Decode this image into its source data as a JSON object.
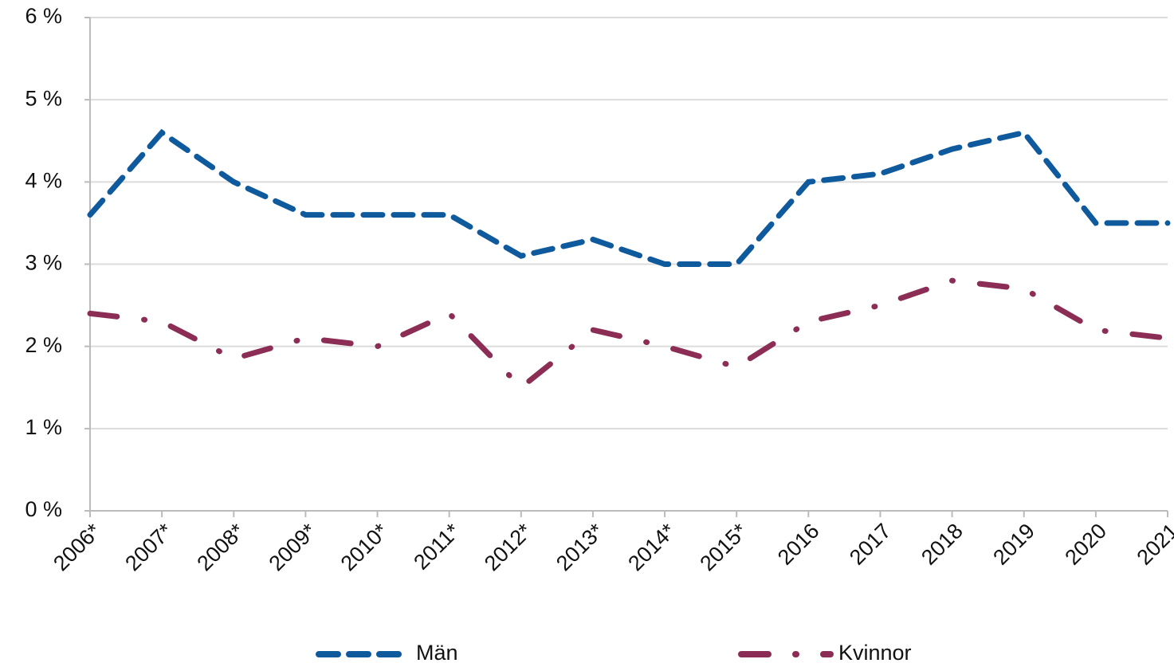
{
  "chart_data": {
    "type": "line",
    "categories": [
      "2006*",
      "2007*",
      "2008*",
      "2009*",
      "2010*",
      "2011*",
      "2012*",
      "2013*",
      "2014*",
      "2015*",
      "2016",
      "2017",
      "2018",
      "2019",
      "2020",
      "2021"
    ],
    "series": [
      {
        "name": "Män",
        "color": "#0f5a9c",
        "dash": "24 14",
        "values": [
          3.6,
          4.6,
          4.0,
          3.6,
          3.6,
          3.6,
          3.1,
          3.3,
          3.0,
          3.0,
          4.0,
          4.1,
          4.4,
          4.6,
          3.5,
          3.5
        ]
      },
      {
        "name": "Kvinnor",
        "color": "#8b2d55",
        "dash": "34 34 1 34",
        "values": [
          2.4,
          2.3,
          1.85,
          2.1,
          2.0,
          2.4,
          1.5,
          2.2,
          2.0,
          1.75,
          2.3,
          2.5,
          2.8,
          2.7,
          2.2,
          2.1
        ]
      }
    ],
    "ylim": [
      0,
      6
    ],
    "yticks": [
      {
        "value": 0,
        "label": "0 %"
      },
      {
        "value": 1,
        "label": "1 %"
      },
      {
        "value": 2,
        "label": "2 %"
      },
      {
        "value": 3,
        "label": "3 %"
      },
      {
        "value": 4,
        "label": "4 %"
      },
      {
        "value": 5,
        "label": "5 %"
      },
      {
        "value": 6,
        "label": "6 %"
      }
    ],
    "grid": true
  }
}
